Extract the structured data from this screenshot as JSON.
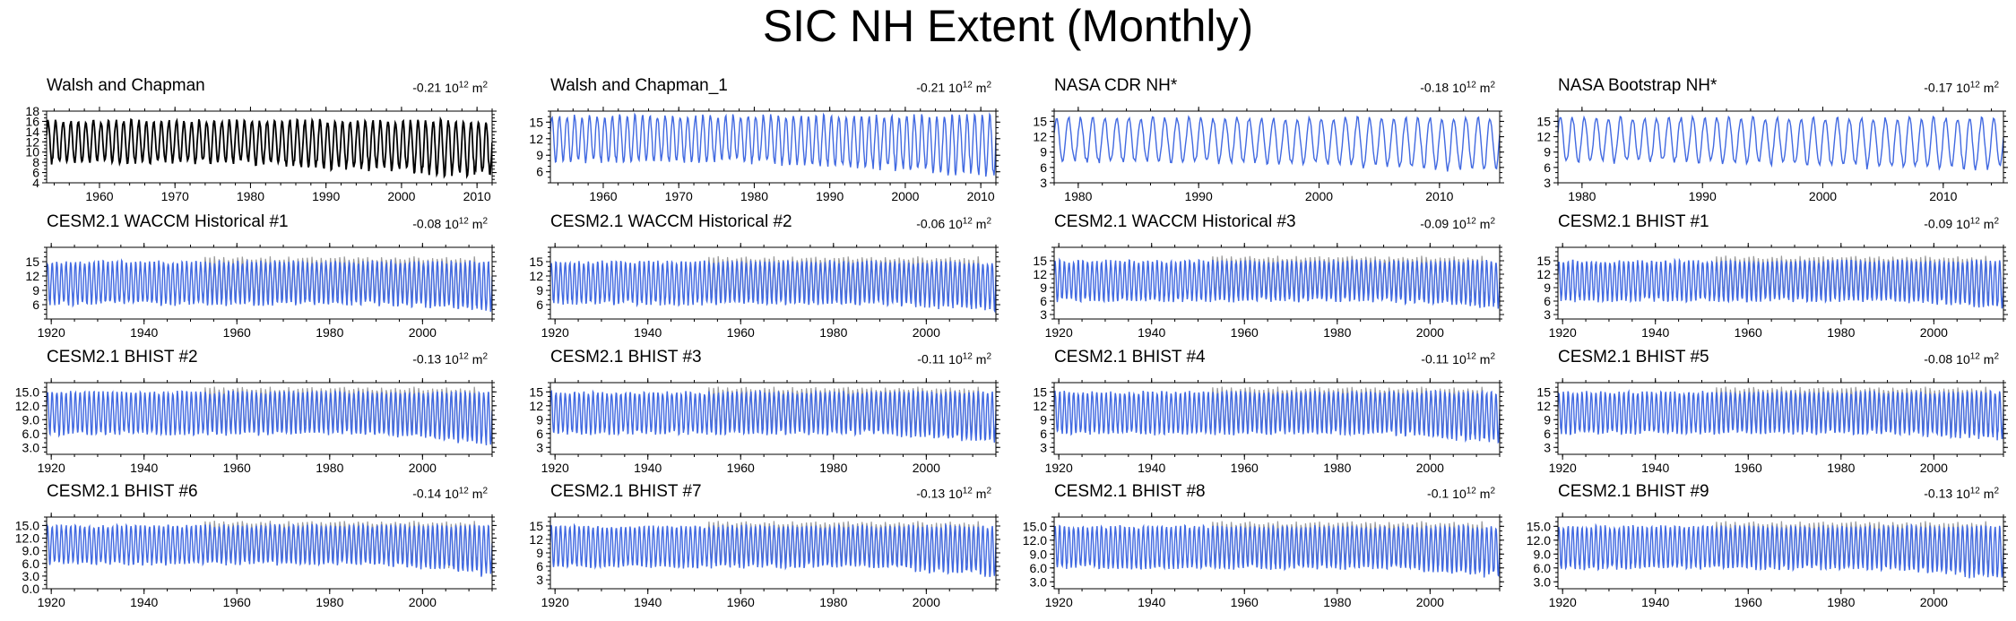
{
  "title": "SIC NH Extent (Monthly)",
  "colors": {
    "obs": "#000000",
    "model": "#4169e1",
    "reference": "#9a9a9a"
  },
  "chart_data": [
    {
      "type": "line",
      "title": "Walsh and Chapman",
      "trend": "-0.21",
      "unit_base": "10",
      "unit_exp": "12",
      "unit_suffix": "m",
      "unit_sfx_exp": "2",
      "series_color": "obs",
      "show_reference": false,
      "xlim": [
        1953,
        2012
      ],
      "x_ticks": [
        1960,
        1970,
        1980,
        1990,
        2000,
        2010
      ],
      "ylim": [
        4,
        18
      ],
      "y_ticks": [
        "4",
        "6",
        "8",
        "10",
        "12",
        "14",
        "16",
        "18"
      ],
      "y_tick_values": [
        4,
        6,
        8,
        10,
        12,
        14,
        16,
        18
      ],
      "seasonal": {
        "max": 16.1,
        "min": 8.0,
        "min_trend": -0.07,
        "min_start": 1978
      }
    },
    {
      "type": "line",
      "title": "Walsh and Chapman_1",
      "trend": "-0.21",
      "unit_base": "10",
      "unit_exp": "12",
      "unit_suffix": "m",
      "unit_sfx_exp": "2",
      "series_color": "model",
      "show_reference": false,
      "xlim": [
        1953,
        2012
      ],
      "x_ticks": [
        1960,
        1970,
        1980,
        1990,
        2000,
        2010
      ],
      "ylim": [
        4,
        17
      ],
      "y_ticks": [
        "6",
        "9",
        "12",
        "15"
      ],
      "y_tick_values": [
        6,
        9,
        12,
        15
      ],
      "seasonal": {
        "max": 16.1,
        "min": 8.0,
        "min_trend": -0.07,
        "min_start": 1978
      }
    },
    {
      "type": "line",
      "title": "NASA CDR NH*",
      "trend": "-0.18",
      "unit_base": "10",
      "unit_exp": "12",
      "unit_suffix": "m",
      "unit_sfx_exp": "2",
      "series_color": "model",
      "show_reference": false,
      "xlim": [
        1978,
        2015
      ],
      "x_ticks": [
        1980,
        1990,
        2000,
        2010
      ],
      "ylim": [
        3,
        17
      ],
      "y_ticks": [
        "3",
        "6",
        "9",
        "12",
        "15"
      ],
      "y_tick_values": [
        3,
        6,
        9,
        12,
        15
      ],
      "seasonal": {
        "max": 15.6,
        "min": 7.2,
        "min_trend": -0.06,
        "min_start": 1990
      }
    },
    {
      "type": "line",
      "title": "NASA Bootstrap NH*",
      "trend": "-0.17",
      "unit_base": "10",
      "unit_exp": "12",
      "unit_suffix": "m",
      "unit_sfx_exp": "2",
      "series_color": "model",
      "show_reference": false,
      "xlim": [
        1978,
        2015
      ],
      "x_ticks": [
        1980,
        1990,
        2000,
        2010
      ],
      "ylim": [
        3,
        17
      ],
      "y_ticks": [
        "3",
        "6",
        "9",
        "12",
        "15"
      ],
      "y_tick_values": [
        3,
        6,
        9,
        12,
        15
      ],
      "seasonal": {
        "max": 15.6,
        "min": 7.2,
        "min_trend": -0.06,
        "min_start": 1990
      }
    },
    {
      "type": "line",
      "title": "CESM2.1 WACCM Historical #1",
      "trend": "-0.08",
      "unit_base": "10",
      "unit_exp": "12",
      "unit_suffix": "m",
      "unit_sfx_exp": "2",
      "series_color": "model",
      "show_reference": true,
      "xlim": [
        1919,
        2015
      ],
      "x_ticks": [
        1920,
        1940,
        1960,
        1980,
        2000
      ],
      "ylim": [
        3,
        18
      ],
      "y_ticks": [
        "6",
        "9",
        "12",
        "15"
      ],
      "y_tick_values": [
        6,
        9,
        12,
        15
      ],
      "seasonal": {
        "max": 14.9,
        "min": 6.2,
        "min_trend": -0.05,
        "min_start": 1990
      }
    },
    {
      "type": "line",
      "title": "CESM2.1 WACCM Historical #2",
      "trend": "-0.06",
      "unit_base": "10",
      "unit_exp": "12",
      "unit_suffix": "m",
      "unit_sfx_exp": "2",
      "series_color": "model",
      "show_reference": true,
      "xlim": [
        1919,
        2015
      ],
      "x_ticks": [
        1920,
        1940,
        1960,
        1980,
        2000
      ],
      "ylim": [
        3,
        18
      ],
      "y_ticks": [
        "6",
        "9",
        "12",
        "15"
      ],
      "y_tick_values": [
        6,
        9,
        12,
        15
      ],
      "seasonal": {
        "max": 14.9,
        "min": 6.3,
        "min_trend": -0.045,
        "min_start": 1990
      }
    },
    {
      "type": "line",
      "title": "CESM2.1 WACCM Historical #3",
      "trend": "-0.09",
      "unit_base": "10",
      "unit_exp": "12",
      "unit_suffix": "m",
      "unit_sfx_exp": "2",
      "series_color": "model",
      "show_reference": true,
      "xlim": [
        1919,
        2015
      ],
      "x_ticks": [
        1920,
        1940,
        1960,
        1980,
        2000
      ],
      "ylim": [
        2,
        18
      ],
      "y_ticks": [
        "3",
        "6",
        "9",
        "12",
        "15"
      ],
      "y_tick_values": [
        3,
        6,
        9,
        12,
        15
      ],
      "seasonal": {
        "max": 14.9,
        "min": 6.2,
        "min_trend": -0.06,
        "min_start": 1990
      }
    },
    {
      "type": "line",
      "title": "CESM2.1 BHIST #1",
      "trend": "-0.09",
      "unit_base": "10",
      "unit_exp": "12",
      "unit_suffix": "m",
      "unit_sfx_exp": "2",
      "series_color": "model",
      "show_reference": true,
      "xlim": [
        1919,
        2015
      ],
      "x_ticks": [
        1920,
        1940,
        1960,
        1980,
        2000
      ],
      "ylim": [
        2,
        18
      ],
      "y_ticks": [
        "3",
        "6",
        "9",
        "12",
        "15"
      ],
      "y_tick_values": [
        3,
        6,
        9,
        12,
        15
      ],
      "seasonal": {
        "max": 14.9,
        "min": 6.2,
        "min_trend": -0.06,
        "min_start": 1990
      }
    },
    {
      "type": "line",
      "title": "CESM2.1 BHIST #2",
      "trend": "-0.13",
      "unit_base": "10",
      "unit_exp": "12",
      "unit_suffix": "m",
      "unit_sfx_exp": "2",
      "series_color": "model",
      "show_reference": true,
      "xlim": [
        1919,
        2015
      ],
      "x_ticks": [
        1920,
        1940,
        1960,
        1980,
        2000
      ],
      "ylim": [
        1.5,
        17
      ],
      "y_ticks": [
        "3.0",
        "6.0",
        "9.0",
        "12.0",
        "15.0"
      ],
      "y_tick_values": [
        3,
        6,
        9,
        12,
        15
      ],
      "seasonal": {
        "max": 14.9,
        "min": 6.0,
        "min_trend": -0.08,
        "min_start": 1990
      }
    },
    {
      "type": "line",
      "title": "CESM2.1 BHIST #3",
      "trend": "-0.11",
      "unit_base": "10",
      "unit_exp": "12",
      "unit_suffix": "m",
      "unit_sfx_exp": "2",
      "series_color": "model",
      "show_reference": true,
      "xlim": [
        1919,
        2015
      ],
      "x_ticks": [
        1920,
        1940,
        1960,
        1980,
        2000
      ],
      "ylim": [
        1.5,
        17
      ],
      "y_ticks": [
        "3",
        "6",
        "9",
        "12",
        "15"
      ],
      "y_tick_values": [
        3,
        6,
        9,
        12,
        15
      ],
      "seasonal": {
        "max": 14.9,
        "min": 6.1,
        "min_trend": -0.07,
        "min_start": 1990
      }
    },
    {
      "type": "line",
      "title": "CESM2.1 BHIST #4",
      "trend": "-0.11",
      "unit_base": "10",
      "unit_exp": "12",
      "unit_suffix": "m",
      "unit_sfx_exp": "2",
      "series_color": "model",
      "show_reference": true,
      "xlim": [
        1919,
        2015
      ],
      "x_ticks": [
        1920,
        1940,
        1960,
        1980,
        2000
      ],
      "ylim": [
        1.5,
        17
      ],
      "y_ticks": [
        "3",
        "6",
        "9",
        "12",
        "15"
      ],
      "y_tick_values": [
        3,
        6,
        9,
        12,
        15
      ],
      "seasonal": {
        "max": 14.9,
        "min": 6.1,
        "min_trend": -0.07,
        "min_start": 1990
      }
    },
    {
      "type": "line",
      "title": "CESM2.1 BHIST #5",
      "trend": "-0.08",
      "unit_base": "10",
      "unit_exp": "12",
      "unit_suffix": "m",
      "unit_sfx_exp": "2",
      "series_color": "model",
      "show_reference": true,
      "xlim": [
        1919,
        2015
      ],
      "x_ticks": [
        1920,
        1940,
        1960,
        1980,
        2000
      ],
      "ylim": [
        1.5,
        17
      ],
      "y_ticks": [
        "3",
        "6",
        "9",
        "12",
        "15"
      ],
      "y_tick_values": [
        3,
        6,
        9,
        12,
        15
      ],
      "seasonal": {
        "max": 14.9,
        "min": 6.2,
        "min_trend": -0.05,
        "min_start": 1990
      }
    },
    {
      "type": "line",
      "title": "CESM2.1 BHIST #6",
      "trend": "-0.14",
      "unit_base": "10",
      "unit_exp": "12",
      "unit_suffix": "m",
      "unit_sfx_exp": "2",
      "series_color": "model",
      "show_reference": true,
      "xlim": [
        1919,
        2015
      ],
      "x_ticks": [
        1920,
        1940,
        1960,
        1980,
        2000
      ],
      "ylim": [
        0,
        17
      ],
      "y_ticks": [
        "0.0",
        "3.0",
        "6.0",
        "9.0",
        "12.0",
        "15.0"
      ],
      "y_tick_values": [
        0,
        3,
        6,
        9,
        12,
        15
      ],
      "seasonal": {
        "max": 14.9,
        "min": 6.0,
        "min_trend": -0.09,
        "min_start": 1990
      }
    },
    {
      "type": "line",
      "title": "CESM2.1 BHIST #7",
      "trend": "-0.13",
      "unit_base": "10",
      "unit_exp": "12",
      "unit_suffix": "m",
      "unit_sfx_exp": "2",
      "series_color": "model",
      "show_reference": true,
      "xlim": [
        1919,
        2015
      ],
      "x_ticks": [
        1920,
        1940,
        1960,
        1980,
        2000
      ],
      "ylim": [
        1,
        17
      ],
      "y_ticks": [
        "3",
        "6",
        "9",
        "12",
        "15"
      ],
      "y_tick_values": [
        3,
        6,
        9,
        12,
        15
      ],
      "seasonal": {
        "max": 14.9,
        "min": 6.0,
        "min_trend": -0.08,
        "min_start": 1990
      }
    },
    {
      "type": "line",
      "title": "CESM2.1 BHIST #8",
      "trend": "-0.1",
      "unit_base": "10",
      "unit_exp": "12",
      "unit_suffix": "m",
      "unit_sfx_exp": "2",
      "series_color": "model",
      "show_reference": true,
      "xlim": [
        1919,
        2015
      ],
      "x_ticks": [
        1920,
        1940,
        1960,
        1980,
        2000
      ],
      "ylim": [
        1.5,
        17
      ],
      "y_ticks": [
        "3.0",
        "6.0",
        "9.0",
        "12.0",
        "15.0"
      ],
      "y_tick_values": [
        3,
        6,
        9,
        12,
        15
      ],
      "seasonal": {
        "max": 14.9,
        "min": 6.1,
        "min_trend": -0.065,
        "min_start": 1990
      }
    },
    {
      "type": "line",
      "title": "CESM2.1 BHIST #9",
      "trend": "-0.13",
      "unit_base": "10",
      "unit_exp": "12",
      "unit_suffix": "m",
      "unit_sfx_exp": "2",
      "series_color": "model",
      "show_reference": true,
      "xlim": [
        1919,
        2015
      ],
      "x_ticks": [
        1920,
        1940,
        1960,
        1980,
        2000
      ],
      "ylim": [
        1.5,
        17
      ],
      "y_ticks": [
        "3.0",
        "6.0",
        "9.0",
        "12.0",
        "15.0"
      ],
      "y_tick_values": [
        3,
        6,
        9,
        12,
        15
      ],
      "seasonal": {
        "max": 14.9,
        "min": 6.0,
        "min_trend": -0.08,
        "min_start": 1990
      }
    }
  ]
}
